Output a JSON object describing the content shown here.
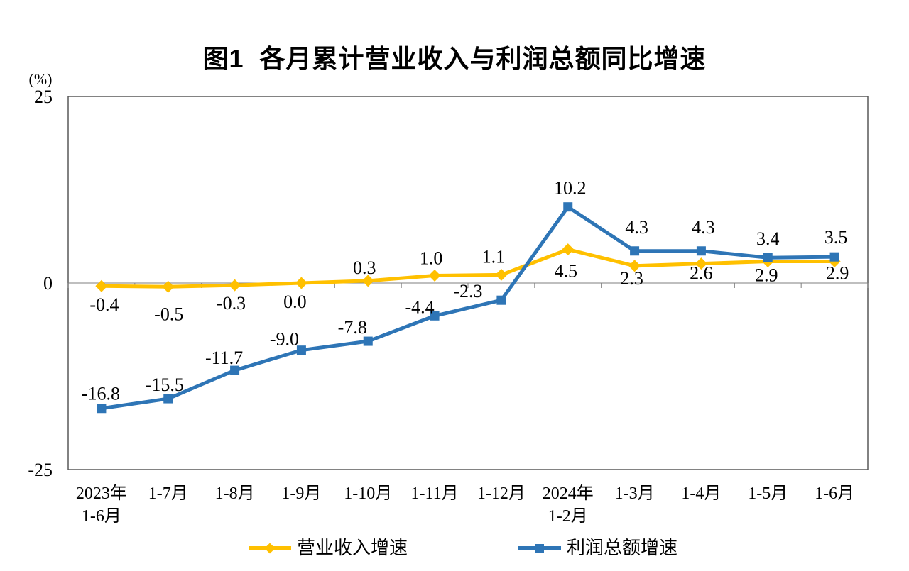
{
  "title": "图1  各月累计营业收入与利润总额同比增速",
  "chart_data": {
    "type": "line",
    "title": "图1  各月累计营业收入与利润总额同比增速",
    "unit_label": "(%)",
    "categories": [
      [
        "2023年",
        "1-6月"
      ],
      [
        "1-7月"
      ],
      [
        "1-8月"
      ],
      [
        "1-9月"
      ],
      [
        "1-10月"
      ],
      [
        "1-11月"
      ],
      [
        "1-12月"
      ],
      [
        "2024年",
        "1-2月"
      ],
      [
        "1-3月"
      ],
      [
        "1-4月"
      ],
      [
        "1-5月"
      ],
      [
        "1-6月"
      ]
    ],
    "ylim": [
      -25,
      25
    ],
    "yticks": [
      25,
      0,
      -25
    ],
    "ytick_labels": [
      "25",
      "0",
      "-25"
    ],
    "grid": false,
    "legend_position": "bottom",
    "axis_color": "#595959",
    "gridline_color": "#7f7f7f",
    "label_color": "#000000",
    "series": [
      {
        "name": "营业收入增速",
        "color": "#FFC000",
        "marker": "diamond",
        "values": [
          -0.4,
          -0.5,
          -0.3,
          0.0,
          0.3,
          1.0,
          1.1,
          4.5,
          2.3,
          2.6,
          2.9,
          2.9
        ],
        "labels": [
          "-0.4",
          "-0.5",
          "-0.3",
          "0.0",
          "0.3",
          "1.0",
          "1.1",
          "4.5",
          "2.3",
          "2.6",
          "2.9",
          "2.9"
        ],
        "label_offsets": [
          [
            4,
            26
          ],
          [
            1,
            38
          ],
          [
            -5,
            25
          ],
          [
            -9,
            26
          ],
          [
            -5,
            -19
          ],
          [
            -5,
            -25
          ],
          [
            -11,
            -26
          ],
          [
            -3,
            30
          ],
          [
            -4,
            17
          ],
          [
            0,
            13
          ],
          [
            -2,
            19
          ],
          [
            4,
            16
          ]
        ]
      },
      {
        "name": "利润总额增速",
        "color": "#2E75B6",
        "marker": "square",
        "values": [
          -16.8,
          -15.5,
          -11.7,
          -9.0,
          -7.8,
          -4.4,
          -2.3,
          10.2,
          4.3,
          4.3,
          3.4,
          3.5
        ],
        "labels": [
          "-16.8",
          "-15.5",
          "-11.7",
          "-9.0",
          "-7.8",
          "-4.4",
          "-2.3",
          "10.2",
          "4.3",
          "4.3",
          "3.4",
          "3.5"
        ],
        "label_offsets": [
          [
            -1,
            -21
          ],
          [
            -5,
            -20
          ],
          [
            -15,
            -18
          ],
          [
            -24,
            -16
          ],
          [
            -22,
            -20
          ],
          [
            -21,
            -13
          ],
          [
            -47,
            -13
          ],
          [
            3,
            -27
          ],
          [
            3,
            -34
          ],
          [
            3,
            -34
          ],
          [
            0,
            -27
          ],
          [
            2,
            -28
          ]
        ]
      }
    ]
  },
  "legend": {
    "items": [
      {
        "label": "营业收入增速"
      },
      {
        "label": "利润总额增速"
      }
    ]
  }
}
